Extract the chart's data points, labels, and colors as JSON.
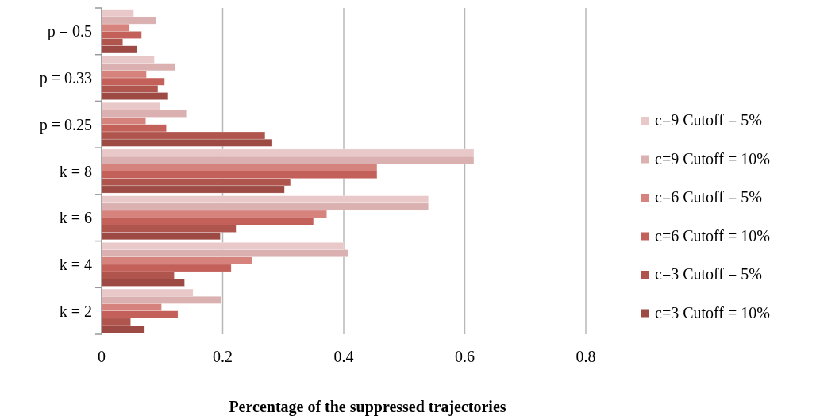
{
  "chart_data": {
    "type": "bar",
    "orientation": "horizontal",
    "xlabel": "Percentage of the suppressed trajectories",
    "categories": [
      "p = 0.5",
      "p = 0.33",
      "p = 0.25",
      "k = 8",
      "k = 6",
      "k = 4",
      "k = 2"
    ],
    "series": [
      {
        "name": "c=9 Cutoff = 5%",
        "color": "#e8c8c8",
        "values": [
          0.053,
          0.087,
          0.097,
          0.615,
          0.54,
          0.4,
          0.151
        ]
      },
      {
        "name": "c=9 Cutoff = 10%",
        "color": "#dbb0b0",
        "values": [
          0.09,
          0.122,
          0.14,
          0.615,
          0.54,
          0.407,
          0.198
        ]
      },
      {
        "name": "c=6 Cutoff = 5%",
        "color": "#d6837d",
        "values": [
          0.046,
          0.074,
          0.073,
          0.455,
          0.372,
          0.249,
          0.099
        ]
      },
      {
        "name": "c=6 Cutoff = 10%",
        "color": "#c4605a",
        "values": [
          0.066,
          0.104,
          0.107,
          0.455,
          0.35,
          0.214,
          0.126
        ]
      },
      {
        "name": "c=3 Cutoff = 5%",
        "color": "#b0554e",
        "values": [
          0.035,
          0.093,
          0.27,
          0.312,
          0.222,
          0.12,
          0.048
        ]
      },
      {
        "name": "c=3 Cutoff = 10%",
        "color": "#9c4a43",
        "values": [
          0.058,
          0.11,
          0.282,
          0.302,
          0.196,
          0.137,
          0.071
        ]
      }
    ],
    "xlim": [
      0,
      0.8
    ],
    "xticks": [
      0,
      0.2,
      0.4,
      0.6,
      0.8
    ],
    "grid": "x",
    "legend": "right"
  }
}
